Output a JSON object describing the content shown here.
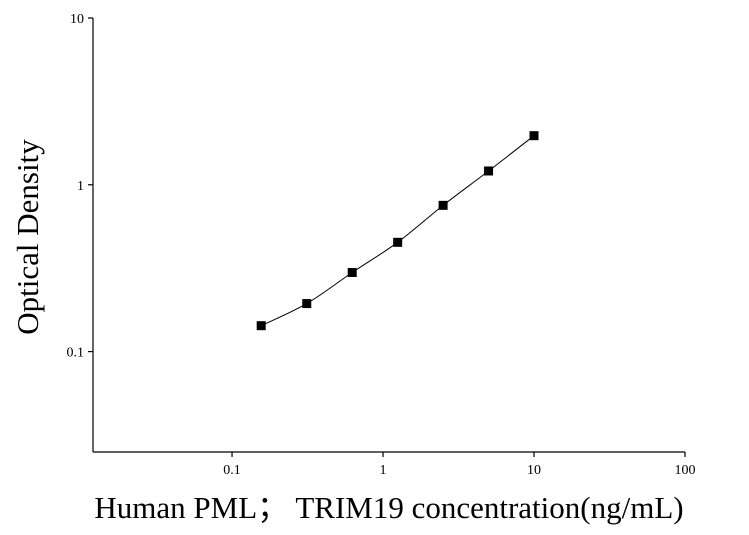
{
  "chart_data": {
    "type": "scatter",
    "x_label": "Human PML； TRIM19 concentration(ng/mL)",
    "y_label": "Optical Density",
    "xscale": "log",
    "yscale": "log",
    "xlim": [
      0.012,
      100
    ],
    "ylim": [
      0.025,
      10
    ],
    "xticks": [
      0.1,
      1,
      10,
      100
    ],
    "yticks": [
      0.1,
      1,
      10
    ],
    "fit_line": true,
    "series": [
      {
        "color": "#000000",
        "marker": "square",
        "x": [
          0.156,
          0.3125,
          0.625,
          1.25,
          2.5,
          5,
          10
        ],
        "values": [
          0.143,
          0.194,
          0.298,
          0.452,
          0.753,
          1.21,
          1.97
        ]
      }
    ]
  }
}
